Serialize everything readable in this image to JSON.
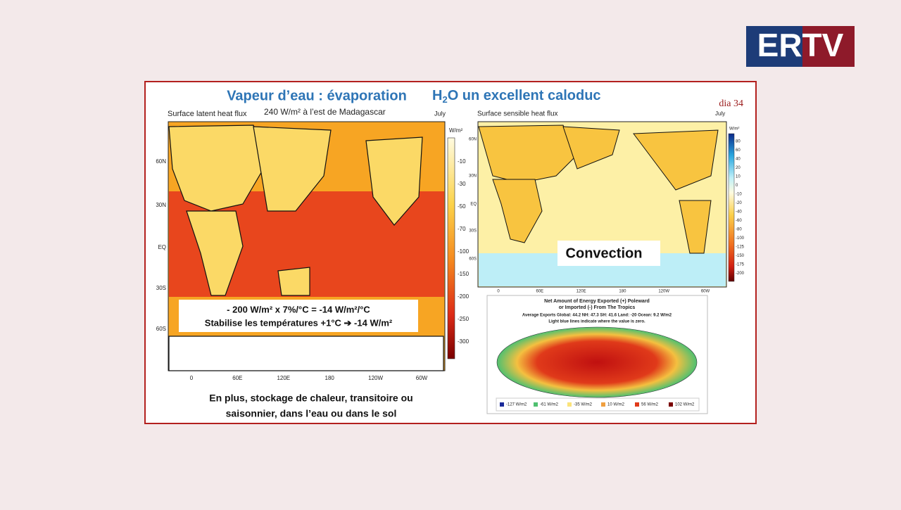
{
  "logo": "ERTV",
  "slide": {
    "title_left": "Vapeur d’eau : évaporation",
    "title_right": {
      "pre": "H",
      "sub": "2",
      "post": "O un excellent caloduc"
    },
    "number": "dia 34",
    "left_map": {
      "title": "Surface latent heat flux",
      "subtitle": "240 W/m² à l’est de Madagascar",
      "month": "July",
      "unit": "W/m²",
      "colorbar_ticks": [
        "-10",
        "-30",
        "-50",
        "-70",
        "-100",
        "-150",
        "-200",
        "-250",
        "-300"
      ],
      "lat_labels": [
        "60N",
        "30N",
        "EQ",
        "30S",
        "60S"
      ],
      "lon_labels": [
        "0",
        "60E",
        "120E",
        "180",
        "120W",
        "60W"
      ],
      "overlay": [
        "- 200 W/m² x 7%/°C = -14 W/m²/°C",
        "Stabilise les températures +1°C ➔ -14 W/m²"
      ]
    },
    "bottom_text": [
      "En plus, stockage de chaleur, transitoire  ou",
      "saisonnier, dans l’eau ou dans le sol"
    ],
    "right_map": {
      "title": "Surface sensible heat flux",
      "month": "July",
      "unit": "W/m²",
      "colorbar_ticks": [
        "80",
        "60",
        "40",
        "20",
        "10",
        "0",
        "-10",
        "-20",
        "-40",
        "-60",
        "-80",
        "-100",
        "-125",
        "-150",
        "-175",
        "-200"
      ],
      "lat_labels": [
        "60N",
        "30N",
        "EQ",
        "30S",
        "60S"
      ],
      "lon_labels": [
        "0",
        "60E",
        "120E",
        "180",
        "120W",
        "60W"
      ],
      "overlay": "Convection"
    },
    "energy_map": {
      "title": [
        "Net Amount of Energy Exported (+) Poleward",
        "or Imported (-) From The Tropics",
        "Average Exports Global: 44.2  NH: 47.3  SH: 41.6  Land: -20  Ocean: 9.2 W/m2",
        "Light blue lines indicate where the value is zero."
      ],
      "legend": [
        "-127 W/m2",
        "-61 W/m2",
        "-35 W/m2",
        "10 W/m2",
        "56 W/m2",
        "102 W/m2"
      ]
    }
  }
}
